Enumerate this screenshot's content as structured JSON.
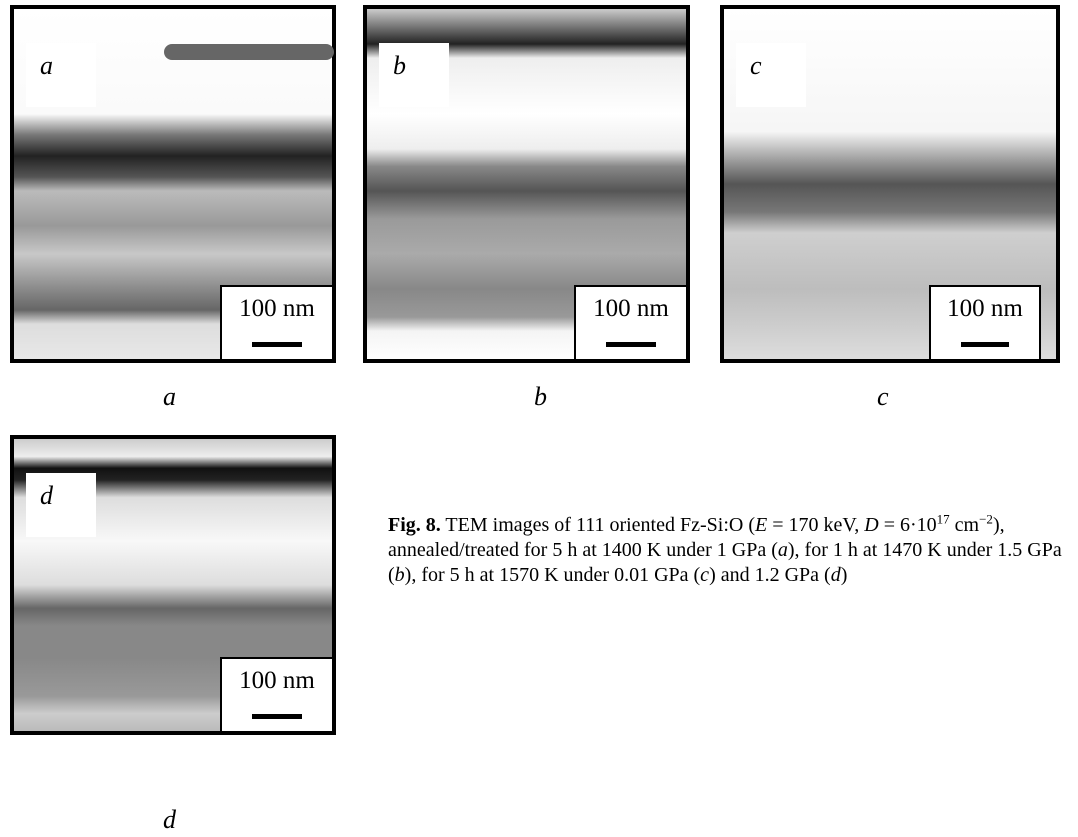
{
  "panels": [
    {
      "inner_label": "a",
      "scale": "100 nm",
      "label": "a"
    },
    {
      "inner_label": "b",
      "scale": "100 nm",
      "label": "b"
    },
    {
      "inner_label": "c",
      "scale": "100 nm",
      "label": "c"
    },
    {
      "inner_label": "d",
      "scale": "100 nm",
      "label": "d"
    }
  ],
  "caption": {
    "label": "Fig. 8.",
    "runs": [
      " TEM images of 111 oriented Fz-Si:O (",
      "E",
      " = 170 keV, ",
      "D",
      " = 6·10",
      "17",
      " cm",
      "−2",
      "), annealed/treated for 5 h at 1400 K under 1 GPa (",
      "a",
      "), for 1 h at 1470 K under 1.5 GPa (",
      "b",
      "), for 5 h at 1570 K under 0.01 GPa (",
      "c",
      ") and 1.2 GPa (",
      "d",
      ")"
    ]
  }
}
